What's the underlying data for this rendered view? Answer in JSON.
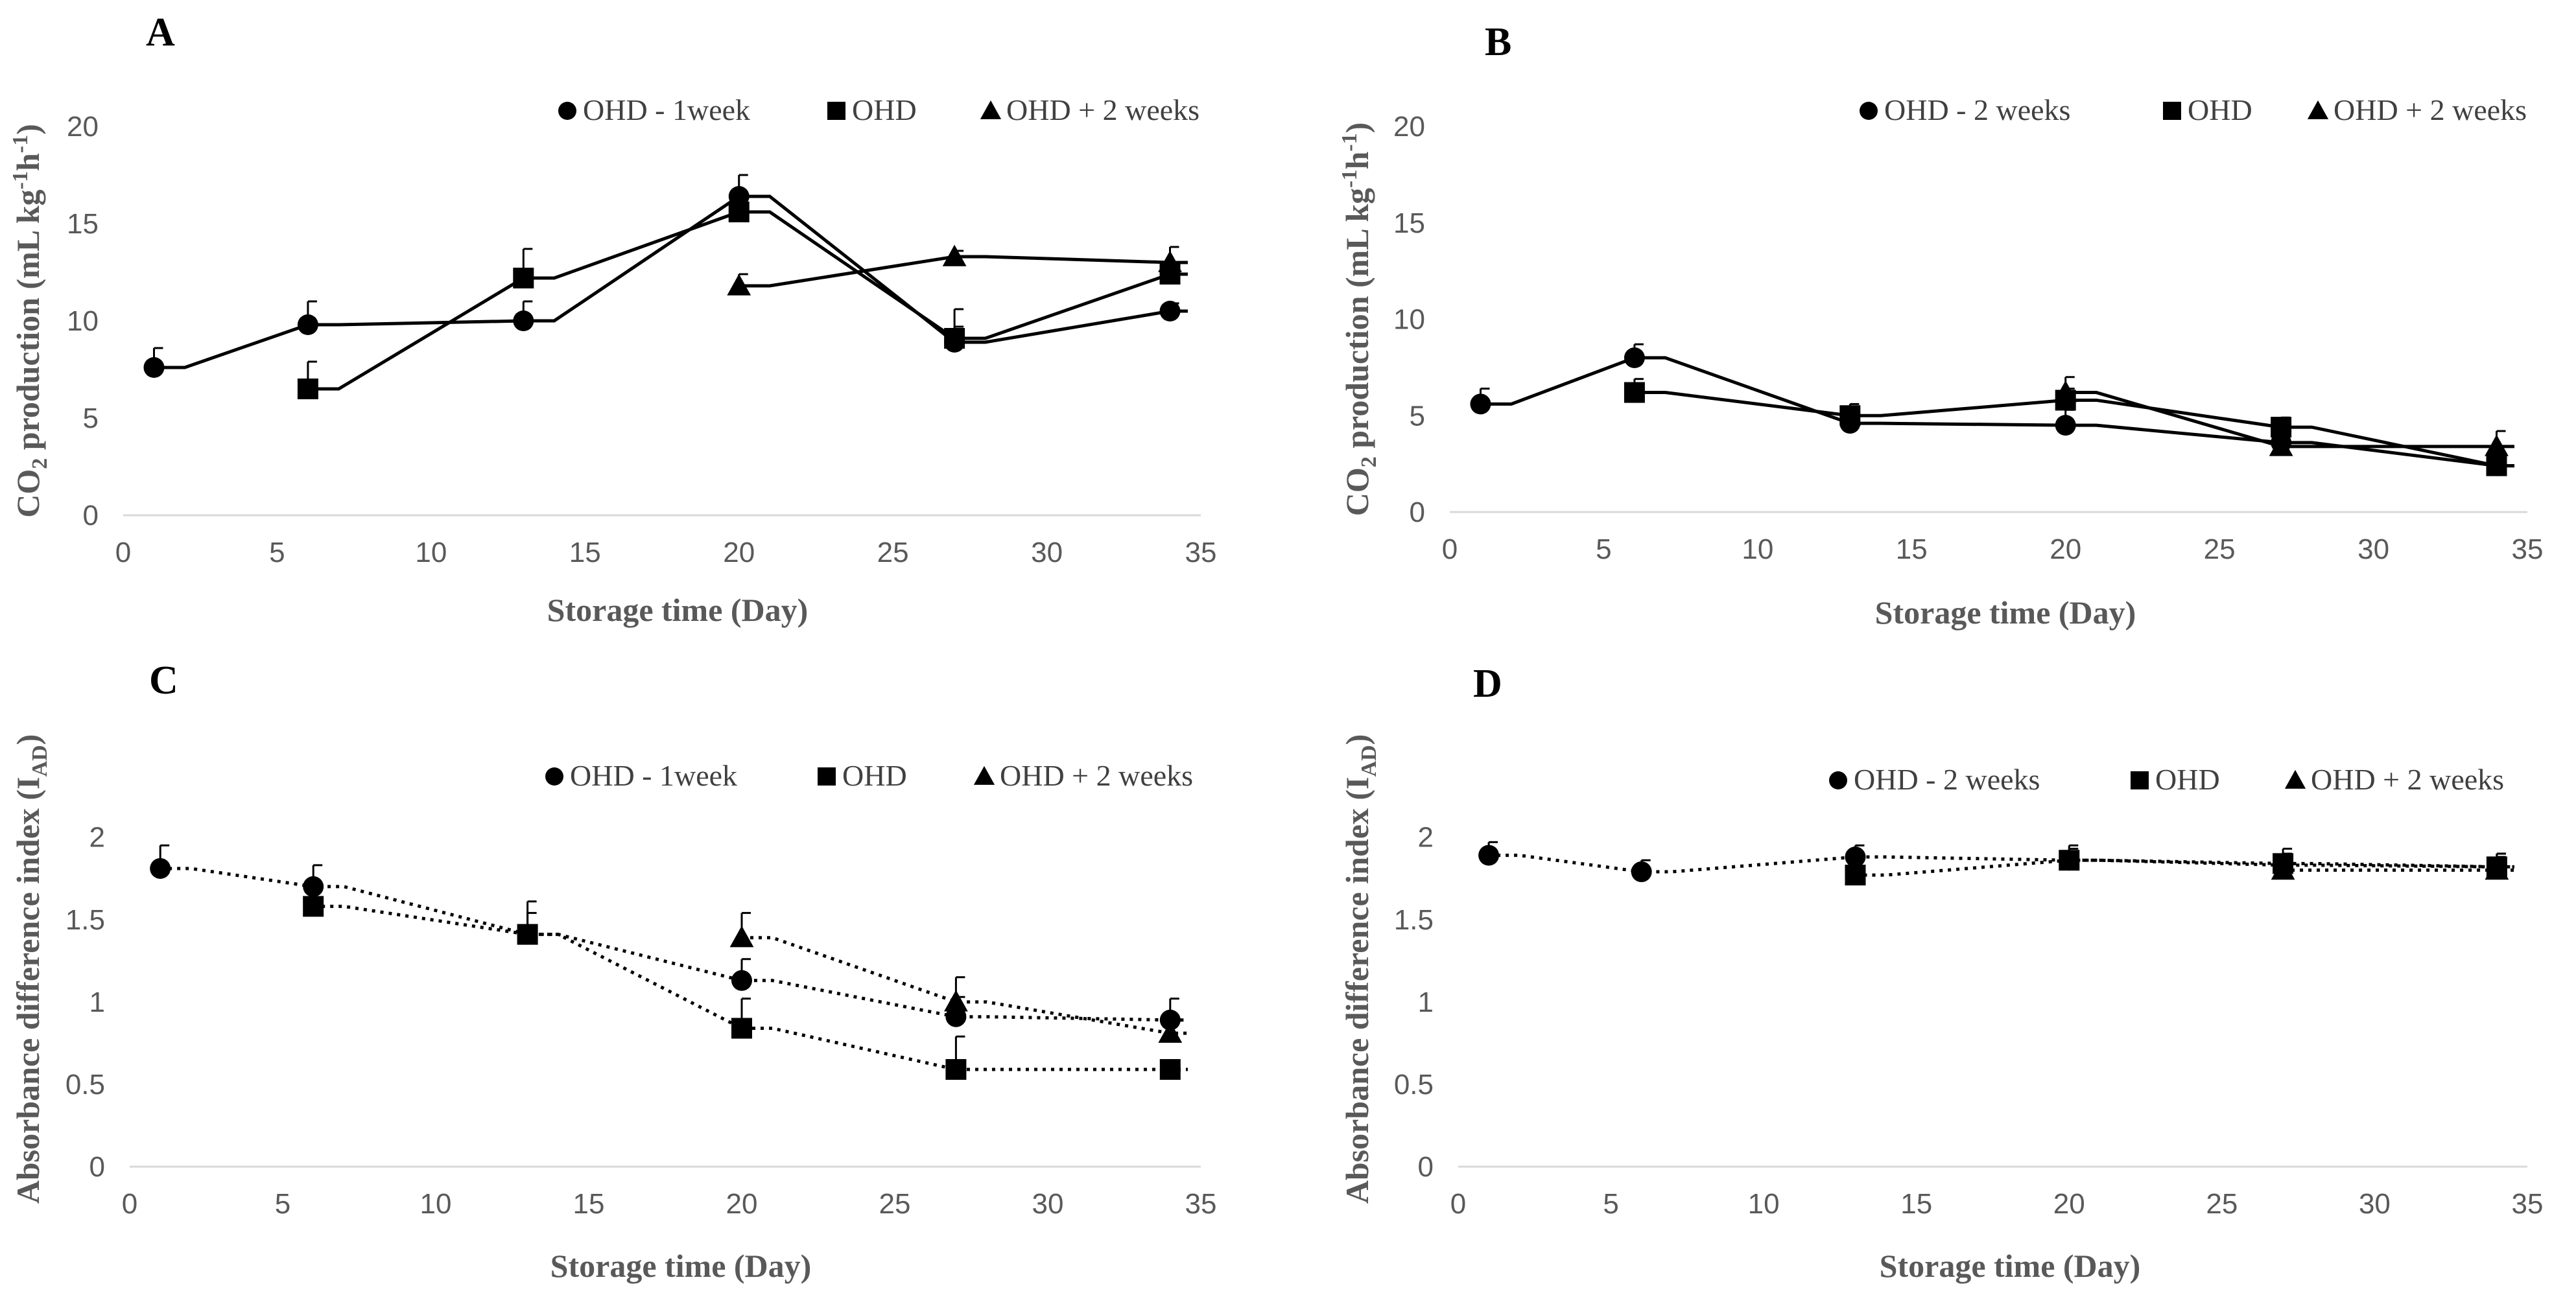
{
  "chart_data": [
    {
      "panel": "A",
      "type": "line",
      "style": "solid",
      "title": "",
      "xlabel": "Storage time (Day)",
      "ylabel": {
        "pre": "CO",
        "sub": "2",
        "mid": " production (mL kg",
        "sup1": "-1",
        "h": "h",
        "sup2": "-1",
        "post": ")"
      },
      "xlim": [
        0,
        35
      ],
      "ylim": [
        0,
        20
      ],
      "xticks": [
        0,
        5,
        10,
        15,
        20,
        25,
        30,
        35
      ],
      "yticks": [
        "0",
        "5",
        "10",
        "15",
        "20"
      ],
      "legend_position": "top-right",
      "series": [
        {
          "name": "OHD - 1week",
          "marker": "circle",
          "x": [
            1,
            6,
            13,
            20,
            27,
            34
          ],
          "y": [
            7.6,
            9.8,
            10.0,
            16.4,
            8.9,
            10.5
          ],
          "err": [
            1.0,
            1.2,
            1.0,
            1.1,
            0.8,
            0.4
          ]
        },
        {
          "name": "OHD",
          "marker": "square",
          "x": [
            6,
            13,
            20,
            27,
            34
          ],
          "y": [
            6.5,
            12.2,
            15.6,
            9.1,
            12.4
          ],
          "err": [
            1.4,
            1.5,
            1.0,
            1.5,
            0.6
          ]
        },
        {
          "name": "OHD + 2 weeks",
          "marker": "triangle",
          "x": [
            20,
            27,
            34
          ],
          "y": [
            11.8,
            13.3,
            13.0
          ],
          "err": [
            0.6,
            0.3,
            0.8
          ]
        }
      ]
    },
    {
      "panel": "B",
      "type": "line",
      "style": "solid",
      "title": "",
      "xlabel": "Storage time (Day)",
      "ylabel": {
        "pre": "CO",
        "sub": "2",
        "mid": " production (mL kg",
        "sup1": "-1",
        "h": "h",
        "sup2": "-1",
        "post": ")"
      },
      "xlim": [
        0,
        35
      ],
      "ylim": [
        0,
        20
      ],
      "xticks": [
        0,
        5,
        10,
        15,
        20,
        25,
        30,
        35
      ],
      "yticks": [
        "0",
        "5",
        "10",
        "15",
        "20"
      ],
      "legend_position": "top-right",
      "series": [
        {
          "name": "OHD - 2 weeks",
          "marker": "circle",
          "x": [
            1,
            6,
            13,
            20,
            27,
            34
          ],
          "y": [
            5.6,
            8.0,
            4.6,
            4.5,
            3.6,
            2.4
          ],
          "err": [
            0.8,
            0.7,
            0.8,
            0.8,
            0.6,
            0.6
          ]
        },
        {
          "name": "OHD",
          "marker": "square",
          "x": [
            6,
            13,
            20,
            27,
            34
          ],
          "y": [
            6.2,
            5.0,
            5.8,
            4.4,
            2.4
          ],
          "err": [
            0.7,
            0.6,
            0.6,
            0.5,
            0.6
          ]
        },
        {
          "name": "OHD + 2 weeks",
          "marker": "triangle",
          "x": [
            20,
            27,
            34
          ],
          "y": [
            6.2,
            3.4,
            3.4
          ],
          "err": [
            0.8,
            0.6,
            0.8
          ]
        }
      ]
    },
    {
      "panel": "C",
      "type": "line",
      "style": "dotted",
      "title": "",
      "xlabel": "Storage time (Day)",
      "ylabel": {
        "pre": "Absorbance  difference index (I",
        "sub": "AD",
        "post": ")"
      },
      "xlim": [
        0,
        35
      ],
      "ylim": [
        0,
        2.4
      ],
      "xticks": [
        0,
        5,
        10,
        15,
        20,
        25,
        30,
        35
      ],
      "yticks": [
        "0",
        "0.5",
        "1",
        "1.5",
        "2"
      ],
      "legend_position": "top-right",
      "series": [
        {
          "name": "OHD - 1week",
          "marker": "circle",
          "x": [
            1,
            6,
            13,
            20,
            27,
            34
          ],
          "y": [
            1.81,
            1.7,
            1.41,
            1.13,
            0.91,
            0.89
          ],
          "err": [
            0.14,
            0.13,
            0.13,
            0.13,
            0.12,
            0.13
          ]
        },
        {
          "name": "OHD",
          "marker": "square",
          "x": [
            6,
            13,
            20,
            27,
            34
          ],
          "y": [
            1.58,
            1.41,
            0.84,
            0.59,
            0.59
          ],
          "err": [
            0.1,
            0.2,
            0.18,
            0.2,
            0.05
          ]
        },
        {
          "name": "OHD + 2 weeks",
          "marker": "triangle",
          "x": [
            20,
            27,
            34
          ],
          "y": [
            1.39,
            1.0,
            0.81
          ],
          "err": [
            0.15,
            0.15,
            0.08
          ]
        }
      ]
    },
    {
      "panel": "D",
      "type": "line",
      "style": "dotted",
      "title": "",
      "xlabel": "Storage time (Day)",
      "ylabel": {
        "pre": "Absorbance  difference index (I",
        "sub": "AD",
        "post": ")"
      },
      "xlim": [
        0,
        35
      ],
      "ylim": [
        0,
        2.4
      ],
      "xticks": [
        0,
        5,
        10,
        15,
        20,
        25,
        30,
        35
      ],
      "yticks": [
        "0",
        "0.5",
        "1",
        "1.5",
        "2"
      ],
      "legend_position": "top-right",
      "series": [
        {
          "name": "OHD - 2 weeks",
          "marker": "circle",
          "x": [
            1,
            6,
            13,
            20,
            27,
            34
          ],
          "y": [
            1.89,
            1.79,
            1.88,
            1.86,
            1.83,
            1.82
          ],
          "err": [
            0.08,
            0.07,
            0.07,
            0.07,
            0.07,
            0.08
          ]
        },
        {
          "name": "OHD",
          "marker": "square",
          "x": [
            13,
            20,
            27,
            34
          ],
          "y": [
            1.77,
            1.86,
            1.84,
            1.82
          ],
          "err": [
            0.05,
            0.09,
            0.09,
            0.08
          ]
        },
        {
          "name": "OHD + 2 weeks",
          "marker": "triangle",
          "x": [
            27,
            34
          ],
          "y": [
            1.8,
            1.8
          ],
          "err": [
            0.05,
            0.08
          ]
        }
      ]
    }
  ]
}
